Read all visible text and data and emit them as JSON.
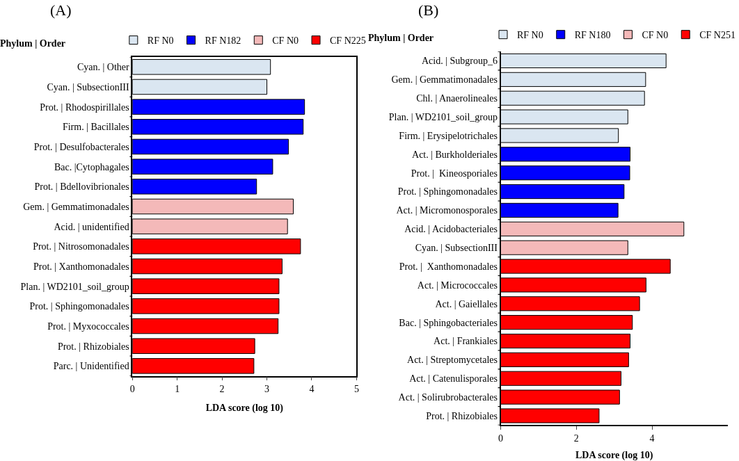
{
  "chart_data": [
    {
      "type": "bar",
      "orientation": "horizontal",
      "title": "(A)",
      "ylabel": "Phylum | Order",
      "xlabel": "LDA score (log 10)",
      "xlim": [
        0,
        5
      ],
      "xticks": [
        0,
        1,
        2,
        3,
        4,
        5
      ],
      "legend": "top",
      "categories": [
        "Cyan. | Other",
        "Cyan. | SubsectionIII",
        "Prot. | Rhodospirillales",
        "Firm. | Bacillales",
        "Prot. | Desulfobacterales",
        "Bac. |Cytophagales",
        "Prot. | Bdellovibrionales",
        "Gem. | Gemmatimonadales",
        "Acid. | unidentified",
        "Prot. | Nitrosomonadales",
        "Prot. | Xanthomonadales",
        "Plan. | WD2101_soil_group",
        "Prot. | Sphingomonadales",
        "Prot. | Myxococcales",
        "Prot. | Rhizobiales",
        "Parc. | Unidentified"
      ],
      "series": [
        {
          "name": "RF N0",
          "color": "#dae6f1",
          "values": [
            3.08,
            3.0,
            null,
            null,
            null,
            null,
            null,
            null,
            null,
            null,
            null,
            null,
            null,
            null,
            null,
            null
          ]
        },
        {
          "name": "RF N182",
          "color": "#0000ff",
          "values": [
            null,
            null,
            3.84,
            3.81,
            3.48,
            3.13,
            2.77,
            null,
            null,
            null,
            null,
            null,
            null,
            null,
            null,
            null
          ]
        },
        {
          "name": "CF N0",
          "color": "#f4b9b9",
          "values": [
            null,
            null,
            null,
            null,
            null,
            null,
            null,
            3.59,
            3.46,
            null,
            null,
            null,
            null,
            null,
            null,
            null
          ]
        },
        {
          "name": "CF N225",
          "color": "#ff0000",
          "values": [
            null,
            null,
            null,
            null,
            null,
            null,
            null,
            null,
            null,
            3.75,
            3.34,
            3.27,
            3.27,
            3.25,
            2.73,
            2.71
          ]
        }
      ]
    },
    {
      "type": "bar",
      "orientation": "horizontal",
      "title": "(B)",
      "ylabel": "Phylum | Order",
      "xlabel": "LDA score (log 10)",
      "xlim": [
        0,
        6
      ],
      "xticks": [
        0,
        2,
        4
      ],
      "legend": "top",
      "categories": [
        "Acid. | Subgroup_6",
        "Gem. | Gemmatimonadales",
        "Chl. | Anaerolineales",
        "Plan. | WD2101_soil_group",
        "Firm. | Erysipelotrichales",
        "Act. | Burkholderiales",
        "Prot. |  Kineosporiales",
        "Prot. | Sphingomonadales",
        "Act. | Micromonosporales",
        "Acid. | Acidobacteriales",
        "Cyan. | SubsectionIII",
        "Prot. |  Xanthomonadales",
        "Act. | Micrococcales",
        "Act. | Gaiellales",
        "Bac. | Sphingobacteriales",
        "Act. | Frankiales",
        "Act. | Streptomycetales",
        "Act. | Catenulisporales",
        "Act. | Solirubrobacterales",
        "Prot. | Rhizobiales"
      ],
      "series": [
        {
          "name": "RF N0",
          "color": "#dae6f1",
          "values": [
            4.37,
            3.83,
            3.8,
            3.36,
            3.11,
            null,
            null,
            null,
            null,
            null,
            null,
            null,
            null,
            null,
            null,
            null,
            null,
            null,
            null,
            null
          ]
        },
        {
          "name": "RF N180",
          "color": "#0000ff",
          "values": [
            null,
            null,
            null,
            null,
            null,
            3.42,
            3.41,
            3.26,
            3.1,
            null,
            null,
            null,
            null,
            null,
            null,
            null,
            null,
            null,
            null,
            null
          ]
        },
        {
          "name": "CF N0",
          "color": "#f4b9b9",
          "values": [
            null,
            null,
            null,
            null,
            null,
            null,
            null,
            null,
            null,
            4.84,
            3.36,
            null,
            null,
            null,
            null,
            null,
            null,
            null,
            null,
            null
          ]
        },
        {
          "name": "CF N251",
          "color": "#ff0000",
          "values": [
            null,
            null,
            null,
            null,
            null,
            null,
            null,
            null,
            null,
            null,
            null,
            4.48,
            3.84,
            3.67,
            3.48,
            3.42,
            3.38,
            3.18,
            3.14,
            2.6
          ]
        }
      ]
    }
  ]
}
